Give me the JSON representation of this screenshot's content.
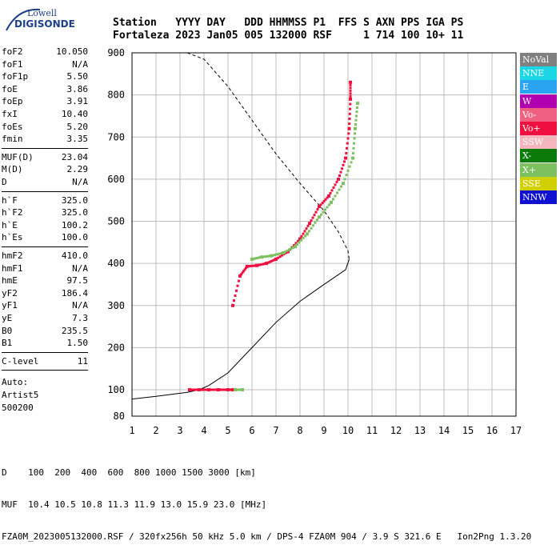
{
  "logo": {
    "line1": "Lowell",
    "line2": "DIGISONDE"
  },
  "header": {
    "labels_row": "Station   YYYY DAY   DDD HHMMSS P1  FFS S AXN PPS IGA PS",
    "values_row": "Fortaleza 2023 Jan05 005 132000 RSF     1 714 100 10+ 11"
  },
  "params": {
    "group1": [
      {
        "k": "foF2",
        "v": "10.050"
      },
      {
        "k": "foF1",
        "v": "N/A"
      },
      {
        "k": "foF1p",
        "v": "5.50"
      },
      {
        "k": "foE",
        "v": "3.86"
      },
      {
        "k": "foEp",
        "v": "3.91"
      },
      {
        "k": "fxI",
        "v": "10.40"
      },
      {
        "k": "foEs",
        "v": "5.20"
      },
      {
        "k": "fmin",
        "v": "3.35"
      }
    ],
    "group2": [
      {
        "k": "MUF(D)",
        "v": "23.04"
      },
      {
        "k": "M(D)",
        "v": "2.29"
      },
      {
        "k": "D",
        "v": "N/A"
      }
    ],
    "group3": [
      {
        "k": "h`F",
        "v": "325.0"
      },
      {
        "k": "h`F2",
        "v": "325.0"
      },
      {
        "k": "h`E",
        "v": "100.2"
      },
      {
        "k": "h`Es",
        "v": "100.0"
      }
    ],
    "group4": [
      {
        "k": "hmF2",
        "v": "410.0"
      },
      {
        "k": "hmF1",
        "v": "N/A"
      },
      {
        "k": "hmE",
        "v": "97.5"
      },
      {
        "k": "yF2",
        "v": "186.4"
      },
      {
        "k": "yF1",
        "v": "N/A"
      },
      {
        "k": "yE",
        "v": "7.3"
      },
      {
        "k": "B0",
        "v": "235.5"
      },
      {
        "k": "B1",
        "v": "1.50"
      }
    ],
    "group5": [
      {
        "k": "C-level",
        "v": "11"
      }
    ],
    "auto": [
      "Auto:",
      "Artist5",
      "500200"
    ]
  },
  "legend": [
    {
      "label": "NoVal",
      "color": "#808080"
    },
    {
      "label": "NNE",
      "color": "#1ad6e6"
    },
    {
      "label": "E",
      "color": "#2aa4f0"
    },
    {
      "label": "W",
      "color": "#b000b0"
    },
    {
      "label": "Vo-",
      "color": "#f06080"
    },
    {
      "label": "Vo+",
      "color": "#f01040"
    },
    {
      "label": "SSW",
      "color": "#f5b5bd"
    },
    {
      "label": "X-",
      "color": "#0a7a0a"
    },
    {
      "label": "X+",
      "color": "#7cc060"
    },
    {
      "label": "SSE",
      "color": "#d0d000"
    },
    {
      "label": "NNW",
      "color": "#1010d0"
    }
  ],
  "footer": {
    "line1": "D    100  200  400  600  800 1000 1500 3000 [km]",
    "line2": "MUF  10.4 10.5 10.8 11.3 11.9 13.0 15.9 23.0 [MHz]",
    "line3": "FZA0M_2023005132000.RSF / 320fx256h 50 kHz 5.0 km / DPS-4 FZA0M 904 / 3.9 S 321.6 E   Ion2Png 1.3.20"
  },
  "chart_data": {
    "type": "scatter",
    "title": "",
    "xlabel": "",
    "ylabel": "",
    "xlim": [
      1,
      17
    ],
    "ylim": [
      80,
      900
    ],
    "x_ticks": [
      "1",
      "2",
      "3",
      "4",
      "5",
      "6",
      "7",
      "8",
      "9",
      "10",
      "11",
      "12",
      "13",
      "14",
      "15",
      "16",
      "17"
    ],
    "y_ticks": [
      "80",
      "100",
      "200",
      "300",
      "400",
      "500",
      "600",
      "700",
      "800",
      "900"
    ],
    "grid": true,
    "series": [
      {
        "name": "Vo+",
        "color": "#f01040",
        "points": [
          [
            5.2,
            300
          ],
          [
            5.5,
            370
          ],
          [
            5.8,
            393
          ],
          [
            6.2,
            395
          ],
          [
            6.6,
            400
          ],
          [
            7.0,
            410
          ],
          [
            7.5,
            428
          ],
          [
            8.0,
            458
          ],
          [
            8.4,
            495
          ],
          [
            8.8,
            535
          ],
          [
            9.2,
            560
          ],
          [
            9.6,
            600
          ],
          [
            9.9,
            650
          ],
          [
            10.05,
            720
          ],
          [
            10.1,
            790
          ],
          [
            10.1,
            830
          ]
        ]
      },
      {
        "name": "X+",
        "color": "#7cc060",
        "points": [
          [
            6.0,
            410
          ],
          [
            6.4,
            415
          ],
          [
            6.8,
            418
          ],
          [
            7.3,
            425
          ],
          [
            7.8,
            440
          ],
          [
            8.3,
            470
          ],
          [
            8.8,
            510
          ],
          [
            9.3,
            545
          ],
          [
            9.8,
            590
          ],
          [
            10.2,
            650
          ],
          [
            10.3,
            720
          ],
          [
            10.4,
            780
          ]
        ]
      },
      {
        "name": "Vo+ E-layer",
        "color": "#f01040",
        "points": [
          [
            3.4,
            100
          ],
          [
            3.8,
            100
          ],
          [
            4.2,
            100
          ],
          [
            4.6,
            100
          ],
          [
            5.0,
            100
          ],
          [
            5.2,
            100
          ]
        ]
      },
      {
        "name": "X+ E-layer",
        "color": "#7cc060",
        "points": [
          [
            5.3,
            100
          ],
          [
            5.6,
            100
          ]
        ]
      }
    ],
    "profile_dashed": [
      [
        3.3,
        900
      ],
      [
        4.0,
        885
      ],
      [
        5.0,
        820
      ],
      [
        6.0,
        740
      ],
      [
        7.0,
        660
      ],
      [
        8.0,
        590
      ],
      [
        9.0,
        525
      ],
      [
        9.6,
        475
      ],
      [
        10.0,
        430
      ],
      [
        10.05,
        410
      ]
    ],
    "profile_solid": [
      [
        10.05,
        410
      ],
      [
        9.9,
        385
      ],
      [
        9.0,
        350
      ],
      [
        8.0,
        310
      ],
      [
        7.0,
        260
      ],
      [
        6.0,
        200
      ],
      [
        5.0,
        140
      ],
      [
        4.2,
        110
      ],
      [
        3.8,
        100
      ],
      [
        3.3,
        98
      ],
      [
        2.0,
        95
      ],
      [
        1.0,
        93
      ]
    ]
  }
}
